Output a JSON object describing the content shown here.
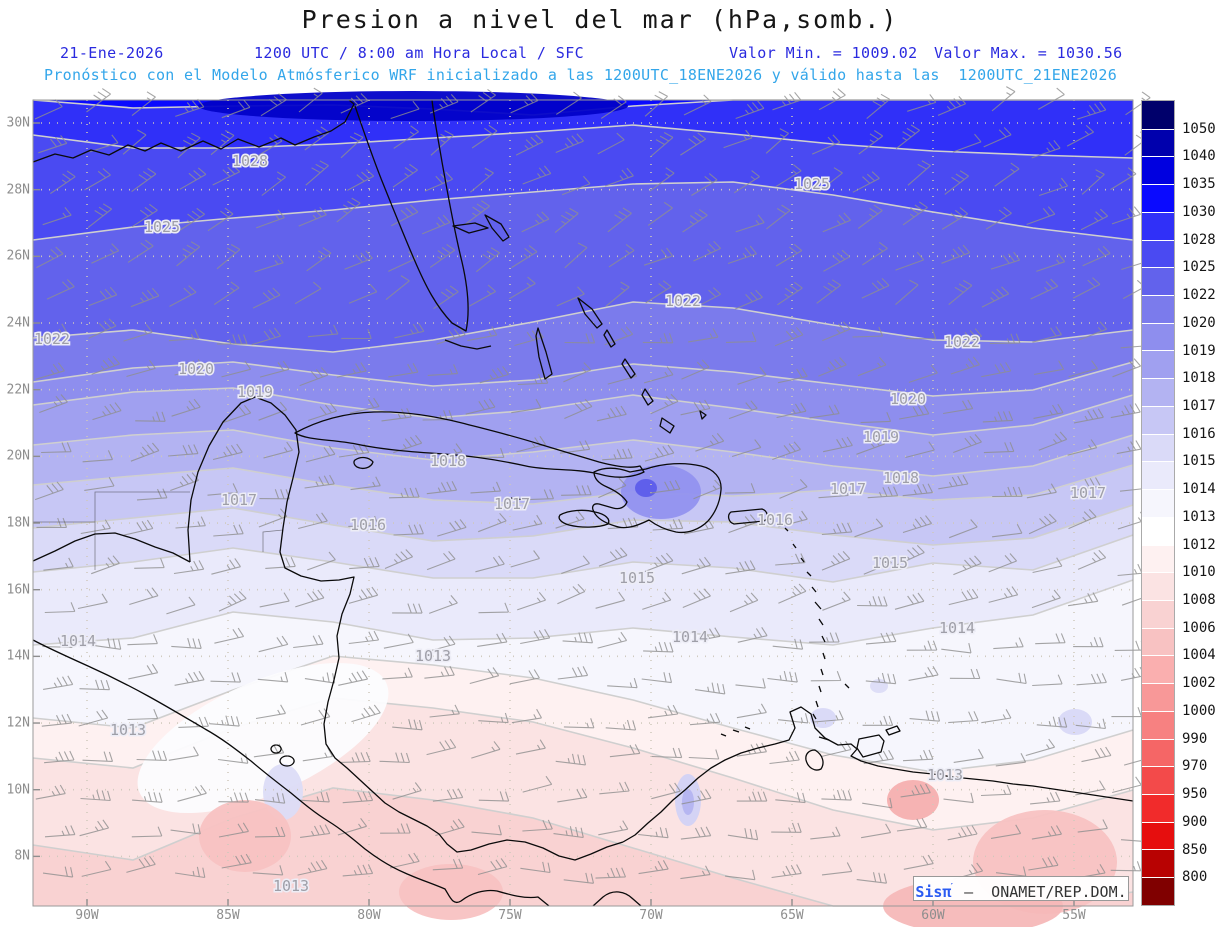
{
  "header": {
    "title": "Presion a nivel del mar (hPa,somb.)",
    "line2": {
      "date": "21-Ene-2026",
      "time": "1200 UTC / 8:00 am Hora Local / SFC",
      "val_min": "Valor Min. = 1009.02",
      "val_max": "Valor Max. = 1030.56"
    },
    "line3": "Pronóstico con el Modelo Atmósferico WRF inicializado a las 1200UTC_18ENE2026 y válido hasta las  1200UTC_21ENE2026"
  },
  "watermark": {
    "brand": "Sis",
    "pi": "π",
    "accent": "ˊ",
    "text": " –  ONAMET/REP.DOM."
  },
  "chart_data": {
    "type": "heatmap",
    "title": "Presion a nivel del mar (hPa,somb.)",
    "units": "hPa",
    "value_min": 1009.02,
    "value_max": 1030.56,
    "x_ticks": [
      "90W",
      "85W",
      "80W",
      "75W",
      "70W",
      "65W",
      "60W",
      "55W"
    ],
    "y_ticks": [
      "30N",
      "28N",
      "26N",
      "24N",
      "22N",
      "20N",
      "18N",
      "16N",
      "14N",
      "12N",
      "10N",
      "8N"
    ],
    "axes": {
      "x0": 54,
      "dx": 141,
      "y0": 23,
      "dy": 66.67,
      "map_w": 1100,
      "map_h": 806
    },
    "grid": {
      "color": "#CFC9BC",
      "dash": "1 7"
    },
    "colorbar": {
      "labels": [
        "1050",
        "1040",
        "1035",
        "1030",
        "1028",
        "1025",
        "1022",
        "1020",
        "1019",
        "1018",
        "1017",
        "1016",
        "1015",
        "1014",
        "1013",
        "1012",
        "1010",
        "1008",
        "1006",
        "1004",
        "1002",
        "1000",
        "990",
        "970",
        "950",
        "900",
        "850",
        "800"
      ],
      "colors": [
        "#00006B",
        "#0000AD",
        "#0000E0",
        "#0A0AFF",
        "#3030F8",
        "#4A4AF2",
        "#6262EC",
        "#7B7BEC",
        "#8E8EEE",
        "#A0A0F0",
        "#B3B3F2",
        "#C7C7F5",
        "#DADAF8",
        "#EAEAFB",
        "#F6F6FD",
        "#FFFFFF",
        "#FEF1F1",
        "#FBE3E3",
        "#F9D2D2",
        "#F8C2C2",
        "#FAAFAF",
        "#F89898",
        "#F78181",
        "#F56666",
        "#F34A4A",
        "#F12B2B",
        "#E60E0E",
        "#B80202",
        "#800000"
      ]
    },
    "bands": {
      "stops": [
        0,
        100,
        200,
        300,
        400,
        500,
        600,
        700,
        800,
        900,
        1000,
        1100
      ],
      "boundaries": [
        {
          "level": 1030,
          "y": [
            0,
            8,
            6,
            5,
            9,
            15,
            6,
            0,
            0,
            0,
            0,
            0
          ]
        },
        {
          "level": 1028,
          "y": [
            35,
            48,
            48,
            44,
            38,
            32,
            25,
            34,
            44,
            51,
            55,
            58
          ]
        },
        {
          "level": 1025,
          "y": [
            140,
            127,
            118,
            110,
            100,
            92,
            84,
            82,
            95,
            112,
            128,
            140
          ]
        },
        {
          "level": 1022,
          "y": [
            238,
            230,
            244,
            252,
            240,
            222,
            202,
            208,
            225,
            240,
            242,
            230
          ]
        },
        {
          "level": 1020,
          "y": [
            282,
            268,
            262,
            275,
            286,
            280,
            264,
            272,
            284,
            296,
            290,
            262
          ]
        },
        {
          "level": 1019,
          "y": [
            305,
            292,
            288,
            305,
            318,
            310,
            295,
            308,
            322,
            335,
            325,
            295
          ]
        },
        {
          "level": 1018,
          "y": [
            345,
            335,
            330,
            348,
            360,
            352,
            340,
            352,
            366,
            376,
            366,
            335
          ]
        },
        {
          "level": 1017,
          "y": [
            385,
            376,
            368,
            385,
            400,
            404,
            392,
            396,
            390,
            400,
            395,
            365
          ]
        },
        {
          "level": 1016,
          "y": [
            428,
            418,
            408,
            425,
            441,
            436,
            420,
            422,
            435,
            445,
            438,
            405
          ]
        },
        {
          "level": 1015,
          "y": [
            472,
            462,
            448,
            462,
            478,
            478,
            462,
            468,
            482,
            463,
            470,
            435
          ]
        },
        {
          "level": 1014,
          "y": [
            545,
            538,
            512,
            522,
            540,
            538,
            528,
            537,
            545,
            528,
            515,
            480
          ]
        },
        {
          "level": 1013,
          "y": [
            618,
            628,
            590,
            556,
            565,
            578,
            600,
            628,
            655,
            672,
            660,
            630
          ]
        },
        {
          "level": 1012,
          "y": [
            658,
            668,
            628,
            598,
            608,
            622,
            648,
            678,
            710,
            730,
            718,
            690
          ]
        },
        {
          "level": 1010,
          "y": [
            745,
            760,
            718,
            688,
            700,
            718,
            748,
            778,
            806,
            806,
            806,
            792
          ]
        }
      ],
      "fills": [
        "#0A0AFF",
        "#3030F8",
        "#4A4AF2",
        "#6262EC",
        "#7B7BEC",
        "#8E8EEE",
        "#A0A0F0",
        "#B3B3F2",
        "#C7C7F5",
        "#DADAF8",
        "#EAEAFB",
        "#F6F6FD",
        "#FEF1F1",
        "#FBE3E3",
        "#F9D2D2"
      ],
      "contour_color": "#CFCFCF"
    },
    "blobs": [
      {
        "cx": 380,
        "cy": 6,
        "rx": 215,
        "ry": 15,
        "rot": 0,
        "fill": "#0202C8"
      },
      {
        "cx": 628,
        "cy": 392,
        "rx": 40,
        "ry": 27,
        "rot": 0,
        "fill": "#9292EF"
      },
      {
        "cx": 613,
        "cy": 388,
        "rx": 11,
        "ry": 9,
        "rot": 0,
        "fill": "#5C5CEA"
      },
      {
        "cx": 230,
        "cy": 638,
        "rx": 135,
        "ry": 56,
        "rot": -24,
        "fill": "#FCFCFE"
      },
      {
        "cx": 250,
        "cy": 692,
        "rx": 20,
        "ry": 28,
        "rot": 0,
        "fill": "#DCDCF7"
      },
      {
        "cx": 655,
        "cy": 700,
        "rx": 13,
        "ry": 26,
        "rot": 0,
        "fill": "#D2D2F5"
      },
      {
        "cx": 655,
        "cy": 702,
        "rx": 6,
        "ry": 13,
        "rot": 0,
        "fill": "#B4B4F0"
      },
      {
        "cx": 790,
        "cy": 618,
        "rx": 13,
        "ry": 10,
        "rot": 0,
        "fill": "#D8D8F7"
      },
      {
        "cx": 846,
        "cy": 586,
        "rx": 9,
        "ry": 7,
        "rot": 0,
        "fill": "#DCDCF7"
      },
      {
        "cx": 1042,
        "cy": 622,
        "rx": 17,
        "ry": 13,
        "rot": 0,
        "fill": "#D8D8F7"
      },
      {
        "cx": 212,
        "cy": 736,
        "rx": 46,
        "ry": 36,
        "rot": 0,
        "fill": "#F8C2C2"
      },
      {
        "cx": 418,
        "cy": 792,
        "rx": 52,
        "ry": 28,
        "rot": 0,
        "fill": "#F8C2C2"
      },
      {
        "cx": 1012,
        "cy": 762,
        "rx": 72,
        "ry": 52,
        "rot": 0,
        "fill": "#F8C2C2"
      },
      {
        "cx": 880,
        "cy": 700,
        "rx": 26,
        "ry": 20,
        "rot": 0,
        "fill": "#F6AFAF"
      },
      {
        "cx": 940,
        "cy": 806,
        "rx": 90,
        "ry": 28,
        "rot": 0,
        "fill": "#F6B8B8"
      }
    ],
    "contour_labels": [
      {
        "v": "1028",
        "x": 217,
        "y": 61
      },
      {
        "v": "1025",
        "x": 129,
        "y": 127
      },
      {
        "v": "1025",
        "x": 779,
        "y": 84
      },
      {
        "v": "1022",
        "x": 19,
        "y": 239
      },
      {
        "v": "1022",
        "x": 650,
        "y": 201
      },
      {
        "v": "1022",
        "x": 929,
        "y": 242
      },
      {
        "v": "1020",
        "x": 163,
        "y": 269
      },
      {
        "v": "1020",
        "x": 875,
        "y": 299
      },
      {
        "v": "1019",
        "x": 222,
        "y": 292
      },
      {
        "v": "1019",
        "x": 848,
        "y": 337
      },
      {
        "v": "1018",
        "x": 415,
        "y": 361
      },
      {
        "v": "1018",
        "x": 868,
        "y": 378
      },
      {
        "v": "1017",
        "x": 206,
        "y": 400
      },
      {
        "v": "1017",
        "x": 479,
        "y": 404
      },
      {
        "v": "1017",
        "x": 815,
        "y": 389
      },
      {
        "v": "1017",
        "x": 1055,
        "y": 393
      },
      {
        "v": "1016",
        "x": 335,
        "y": 425
      },
      {
        "v": "1016",
        "x": 742,
        "y": 420
      },
      {
        "v": "1015",
        "x": 604,
        "y": 478
      },
      {
        "v": "1015",
        "x": 857,
        "y": 463
      },
      {
        "v": "1014",
        "x": 45,
        "y": 541
      },
      {
        "v": "1014",
        "x": 657,
        "y": 537
      },
      {
        "v": "1014",
        "x": 924,
        "y": 528
      },
      {
        "v": "1013",
        "x": 400,
        "y": 556
      },
      {
        "v": "1013",
        "x": 95,
        "y": 630
      },
      {
        "v": "1013",
        "x": 912,
        "y": 675
      },
      {
        "v": "1013",
        "x": 258,
        "y": 786
      }
    ],
    "coastlines": [
      "M0,62 L22,54 L40,58 L58,50 L76,55 L95,45 L112,51 L128,43 L148,51 L170,41 L188,49 L205,39 L226,47 L248,38 L262,45 L281,37 L298,31 L312,22 L321,4 L316,0",
      "M322,6 C331,32 339,56 349,81 C359,106 369,131 381,159 C393,187 403,206 419,223 L433,231 C437,212 435,188 429,162 C421,130 415,95 409,62 C405,38 401,18 399,0",
      "M412,240 L428,246 L444,249 L458,246",
      "M420,126 L442,123 L455,128 L436,133 Z M452,115 L468,124 L476,137 L470,141 L459,128 Z M505,228 L513,252 L519,274 L512,279 L506,257 L503,236 Z M545,198 L559,209 L569,224 L564,228 L552,214 Z M574,230 L582,244 L578,247 L571,235 Z M592,259 L602,274 L598,278 L589,264 Z M612,289 L620,301 L615,305 L609,295 Z M629,318 L641,326 L637,333 L627,326 Z M667,311 L673,315 L669,319 Z",
      "M262,333 C286,320 311,313 341,312 C371,311 401,316 429,323 C456,330 481,336 506,344 C526,350 549,357 566,362 C581,366 597,369 607,366 L611,372 C599,378 583,379 566,374 C541,368 516,371 493,366 C466,360 439,356 411,354 C381,352 351,350 323,344 C299,339 276,341 262,333 Z",
      "M322,360 C328,356 336,357 340,362 C338,368 330,370 324,367 C321,365 320,362 322,360 Z",
      "M478,398 L492,400",
      "M527,415 C536,410 551,409 562,412 C572,414 578,419 575,424 C565,428 548,428 536,425 C529,423 524,419 527,415 Z",
      "M561,372 C573,366 586,368 597,372 L613,369 C631,363 651,362 668,366 C681,369 689,378 688,390 C687,402 682,413 675,421 C667,429 655,434 643,432 C633,430 624,426 616,420 C604,426 592,430 582,426 C572,423 564,418 561,412 C558,407 560,403 566,404 L580,408 C587,410 592,407 594,402 C590,396 583,391 574,387 C567,384 561,379 561,372 Z",
      "M698,412 L729,409 C735,411 736,418 731,421 L701,424 C695,422 694,415 698,412 Z",
      "M752,428 l3,3 M760,444 l3,4 M768,458 l3,4 M774,472 l4,4 M779,487 l4,5 M782,502 l6,7 M786,519 l4,6 M789,536 l3,6 M790,553 l2,6 M788,569 l2,6 M786,586 l2,6 M783,601 l2,6 M780,614 l3,5 M812,584 l4,4",
      "M826,639 L846,635 L851,641 L848,652 L830,657 L824,648 Z M853,630 L864,626 L867,631 L856,635 Z",
      "M786,637 L796,640 M700,630 l6,2 M688,634 l5,2 M712,627 l5,2",
      "M157,462 L155,430 L158,400 L165,372 L176,346 L190,322 L208,303 L222,297 L238,303 L252,315 L263,330 L266,352 L260,378 L254,402 L250,428 L247,452 L252,468 L268,476 L288,481 L306,480 L321,477 L317,494 L309,514 L304,536 L306,558 L301,580 L295,602 L291,624 L293,644 L302,658 L314,668 L327,680 L340,692 L352,703 L366,712 L380,719 L394,726 L406,734 L414,744 L424,752 L438,750 L456,744 L474,740 L492,742 L510,748 L526,756 L542,760 L558,754 L574,747 L590,742",
      "M157,462 L140,453 L122,447 L102,439 L82,433 L62,434 L42,441 L22,451 L0,461",
      "M0,540 C15,548 35,557 55,566 C75,575 95,585 115,596 C135,607 155,619 172,629 C190,639 205,651 218,661 C232,673 245,683 258,693 C270,703 282,713 295,721 C308,729 320,739 332,749 C345,759 358,767 372,773 C385,779 398,783 412,789 C417,797 420,806 428,801 C438,793 452,789 464,791 C478,795 492,799 505,797 L516,806",
      "M560,806 L570,797 C580,789 592,791 600,799 L608,806",
      "M590,742 L602,735 L615,723 L628,712 L640,700 L652,690 L665,678 L678,668 L692,660 L708,653 L725,648 L742,644 L756,640 L762,628 L757,612 L768,607 L778,614 L782,628 L792,638 L805,645 L818,644 L824,649 L818,656 L828,661 L845,666 L862,669 L880,672 L900,674 L920,677 L940,679 L960,681 L980,684 L1000,686 L1020,689 L1040,692 L1060,695 L1080,698 L1100,701",
      "M782,650 C790,655 792,663 788,669 C782,672 775,668 773,660 C772,654 776,650 782,650 Z",
      "M243,645 a5,4 0 1 0 0.1,0 M254,656 a7,5 0 1 0 0.1,0"
    ],
    "borders": [
      "M157,392 L62,392 L62,470 M62,422 L0,422 M250,430 L230,432 L230,452"
    ],
    "wind_barbs": {
      "color": "#8F8F8F",
      "col_step": 43,
      "row_step": 38,
      "staff_len": 30
    }
  }
}
